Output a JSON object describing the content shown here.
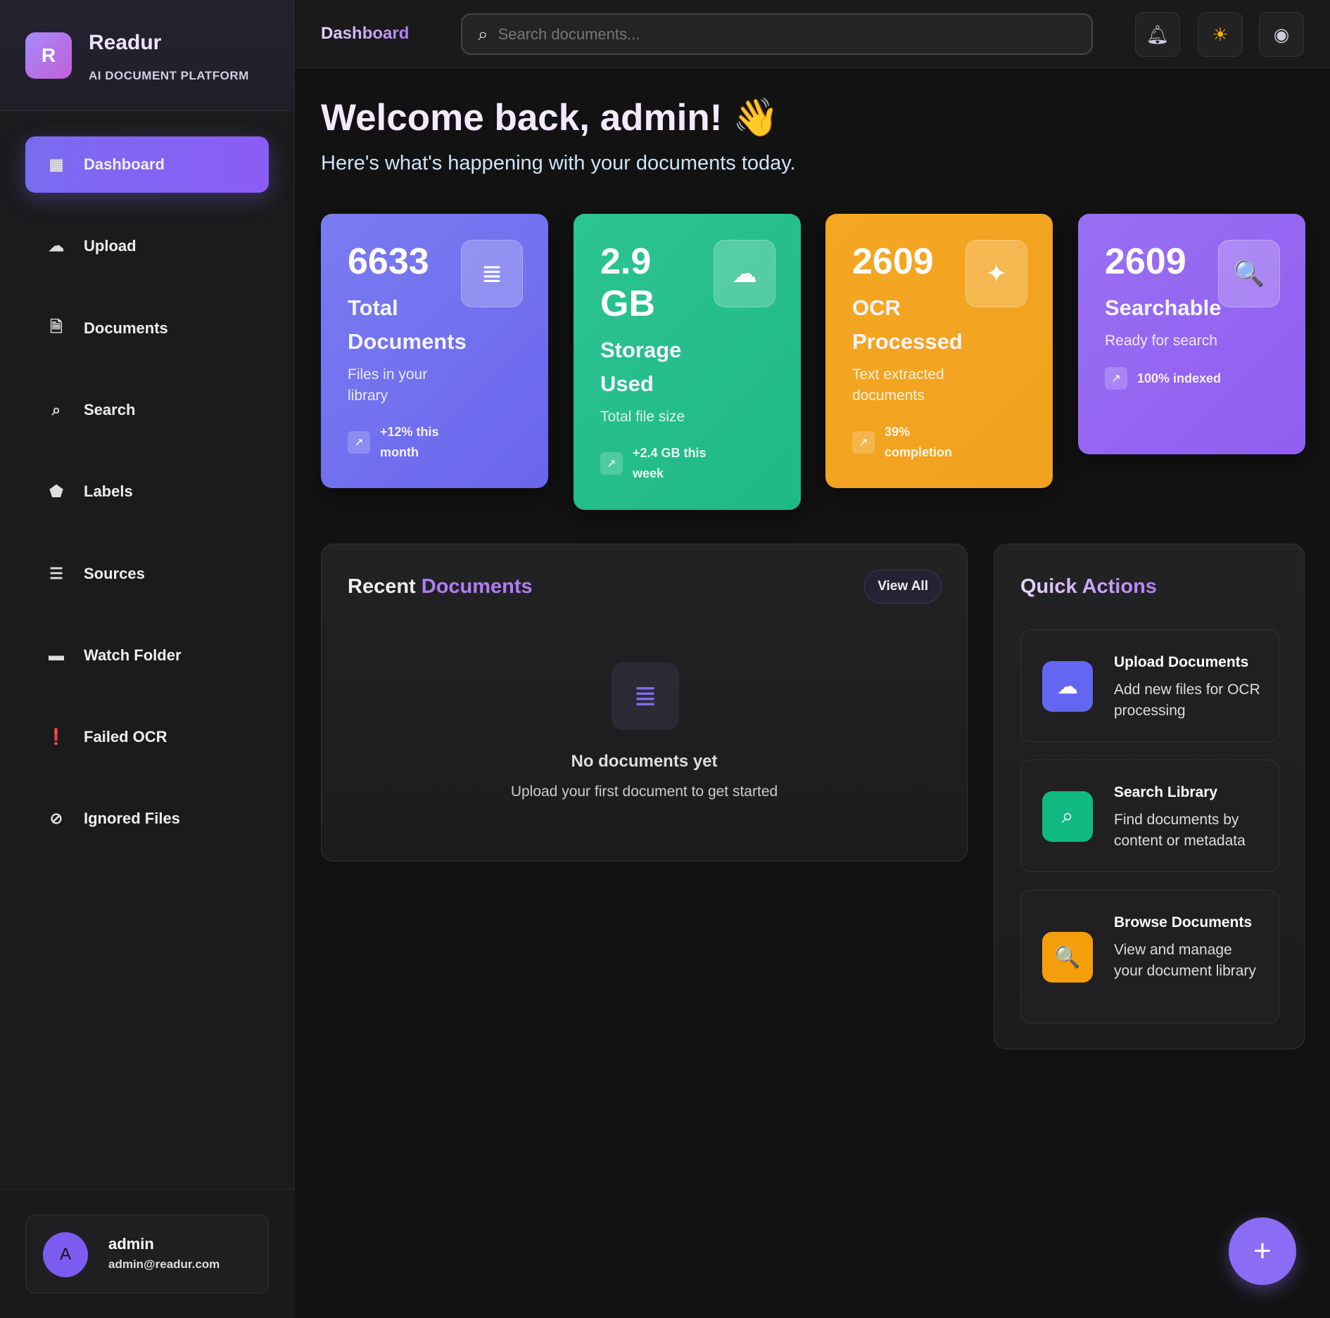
{
  "brand": {
    "logo_letter": "R",
    "name": "Readur",
    "subtitle": "AI DOCUMENT PLATFORM"
  },
  "sidebar": {
    "items": [
      {
        "label": "Dashboard",
        "icon": "dashboard-icon",
        "glyph": "▦",
        "active": true
      },
      {
        "label": "Upload",
        "icon": "cloud-upload-icon",
        "glyph": "☁"
      },
      {
        "label": "Documents",
        "icon": "document-icon",
        "glyph": "🗎"
      },
      {
        "label": "Search",
        "icon": "search-icon",
        "glyph": "⌕"
      },
      {
        "label": "Labels",
        "icon": "label-icon",
        "glyph": "⬟"
      },
      {
        "label": "Sources",
        "icon": "storage-icon",
        "glyph": "☰"
      },
      {
        "label": "Watch Folder",
        "icon": "folder-icon",
        "glyph": "▬"
      },
      {
        "label": "Failed OCR",
        "icon": "error-icon",
        "glyph": "❗"
      },
      {
        "label": "Ignored Files",
        "icon": "block-icon",
        "glyph": "⊘"
      }
    ]
  },
  "user": {
    "initial": "A",
    "name": "admin",
    "email": "admin@readur.com"
  },
  "header": {
    "title": "Dashboard",
    "search_placeholder": "Search documents..."
  },
  "welcome": {
    "title": "Welcome back, admin!",
    "wave": "👋",
    "subtitle": "Here's what's happening with your documents today."
  },
  "colors": {
    "accent": "#8b5cf6",
    "blue": "#6c6cf0",
    "green": "#22bb88",
    "orange": "#f3a323",
    "purple": "#9466f2"
  },
  "stats": [
    {
      "value": "6633",
      "title": "Total Documents",
      "desc": "Files in your library",
      "trend": "+12% this month",
      "icon": "document-icon",
      "glyph": "≣"
    },
    {
      "value": "2.9 GB",
      "title": "Storage Used",
      "desc": "Total file size",
      "trend": "+2.4 GB this week",
      "icon": "cloud-done-icon",
      "glyph": "☁"
    },
    {
      "value": "2609",
      "title": "OCR Processed",
      "desc": "Text extracted documents",
      "trend": "39% completion",
      "icon": "sparkle-icon",
      "glyph": "✦"
    },
    {
      "value": "2609",
      "title": "Searchable",
      "desc": "Ready for search",
      "trend": "100% indexed",
      "icon": "find-in-page-icon",
      "glyph": "🔍"
    }
  ],
  "recent": {
    "title_a": "Recent",
    "title_b": "Documents",
    "view_all": "View All",
    "empty_title": "No documents yet",
    "empty_sub": "Upload your first document to get started"
  },
  "quick": {
    "title": "Quick Actions",
    "items": [
      {
        "title": "Upload Documents",
        "desc": "Add new files for OCR processing",
        "color": "#6366f1",
        "glyph": "☁"
      },
      {
        "title": "Search Library",
        "desc": "Find documents by content or metadata",
        "color": "#10b981",
        "glyph": "⌕"
      },
      {
        "title": "Browse Documents",
        "desc": "View and manage your document library",
        "color": "#f59e0b",
        "glyph": "🔍"
      }
    ]
  },
  "fab": "+"
}
